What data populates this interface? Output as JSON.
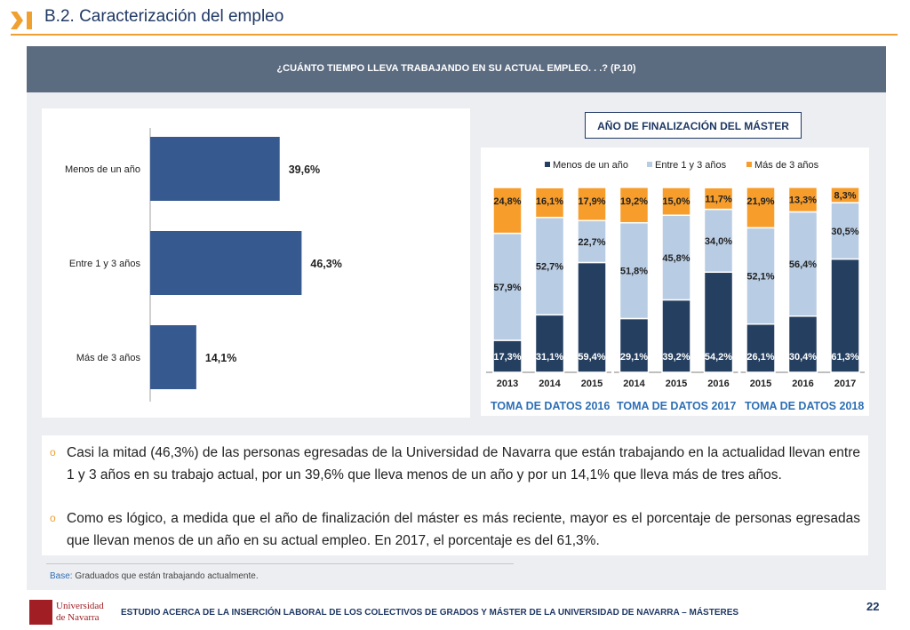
{
  "header": {
    "title": "B.2. Caracterización del empleo"
  },
  "banner": {
    "question": "¿CUÁNTO TIEMPO LLEVA TRABAJANDO EN SU ACTUAL EMPLEO. . .? (P.10)"
  },
  "colors": {
    "accent": "#f0a030",
    "navy": "#1f3864",
    "bar_dark": "#243f60",
    "bar_light": "#b8cce4",
    "bar_orange": "#f79d2b",
    "hbar": "#36598f",
    "group_label": "#2e6fb5"
  },
  "chart_data": [
    {
      "type": "bar",
      "orientation": "horizontal",
      "categories": [
        "Menos de un año",
        "Entre 1 y 3 años",
        "Más de 3 años"
      ],
      "values": [
        39.6,
        46.3,
        14.1
      ],
      "value_labels": [
        "39,6%",
        "46,3%",
        "14,1%"
      ],
      "xlim": [
        0,
        100
      ]
    },
    {
      "type": "bar",
      "stacked": true,
      "title": "AÑO DE FINALIZACIÓN DEL MÁSTER",
      "legend_position": "top",
      "categories": [
        "2013",
        "2014",
        "2015",
        "2014",
        "2015",
        "2016",
        "2015",
        "2016",
        "2017"
      ],
      "groups": [
        {
          "label": "TOMA DE DATOS 2016",
          "categories": [
            "2013",
            "2014",
            "2015"
          ]
        },
        {
          "label": "TOMA DE DATOS 2017",
          "categories": [
            "2014",
            "2015",
            "2016"
          ]
        },
        {
          "label": "TOMA DE DATOS 2018",
          "categories": [
            "2015",
            "2016",
            "2017"
          ]
        }
      ],
      "series": [
        {
          "name": "Menos de un año",
          "values": [
            17.3,
            31.1,
            59.4,
            29.1,
            39.2,
            54.2,
            26.1,
            30.4,
            61.3
          ],
          "labels": [
            "17,3%",
            "31,1%",
            "59,4%",
            "29,1%",
            "39,2%",
            "54,2%",
            "26,1%",
            "30,4%",
            "61,3%"
          ]
        },
        {
          "name": "Entre 1 y 3 años",
          "values": [
            57.9,
            52.7,
            22.7,
            51.8,
            45.8,
            34.0,
            52.1,
            56.4,
            30.5
          ],
          "labels": [
            "57,9%",
            "52,7%",
            "22,7%",
            "51,8%",
            "45,8%",
            "34,0%",
            "52,1%",
            "56,4%",
            "30,5%"
          ]
        },
        {
          "name": "Más de 3 años",
          "values": [
            24.8,
            16.1,
            17.9,
            19.2,
            15.0,
            11.7,
            21.9,
            13.3,
            8.3
          ],
          "labels": [
            "24,8%",
            "16,1%",
            "17,9%",
            "19,2%",
            "15,0%",
            "11,7%",
            "21,9%",
            "13,3%",
            "8,3%"
          ]
        }
      ],
      "ylim": [
        0,
        100
      ]
    }
  ],
  "bullets": [
    "Casi la mitad (46,3%) de las personas egresadas de la Universidad de Navarra que están trabajando en la actualidad llevan entre 1 y 3 años en su trabajo actual, por un 39,6% que lleva menos de un año y por un 14,1% que lleva más de tres años.",
    "Como es lógico, a medida que el año de finalización del máster es más reciente, mayor es el porcentaje de personas egresadas que llevan menos de un año en su actual empleo. En 2017, el porcentaje es del 61,3%."
  ],
  "bullet_marker": "o",
  "base": {
    "label": "Base:",
    "text": "Graduados que están trabajando actualmente."
  },
  "footer": {
    "text": "ESTUDIO ACERCA DE LA INSERCIÓN LABORAL DE LOS COLECTIVOS DE GRADOS Y MÁSTER DE LA UNIVERSIDAD DE NAVARRA – MÁSTERES",
    "page_number": "22",
    "logo_line1": "Universidad",
    "logo_line2": "de Navarra"
  }
}
